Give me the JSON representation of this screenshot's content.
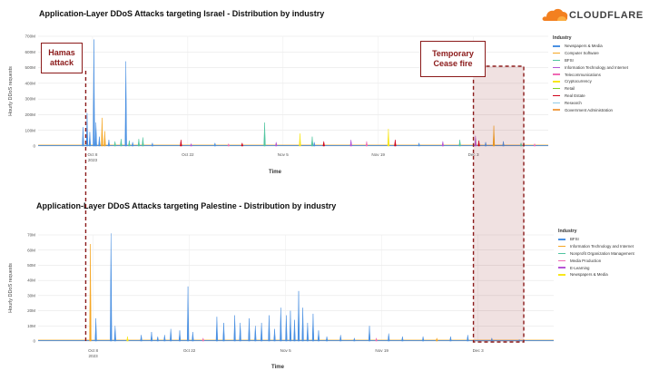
{
  "brand": {
    "name": "CLOUDFLARE",
    "color": "#f38020"
  },
  "annotations": {
    "hamas_label": "Hamas attack",
    "cease_label": "Temporary Cease fire",
    "color": "#8b1a1a"
  },
  "chart_data": [
    {
      "type": "line",
      "title": "Application-Layer DDoS Attacks targeting Israel - Distribution by industry",
      "xlabel": "Time",
      "ylabel": "Hourly DDoS requests",
      "x_ticks": [
        {
          "label": "Oct 8",
          "sub": "2023",
          "day": 8
        },
        {
          "label": "Oct 22",
          "sub": "",
          "day": 22
        },
        {
          "label": "Nov 5",
          "sub": "",
          "day": 36
        },
        {
          "label": "Nov 19",
          "sub": "",
          "day": 50
        },
        {
          "label": "Dec 3",
          "sub": "",
          "day": 64
        }
      ],
      "y_ticks": [
        "0",
        "100M",
        "200M",
        "300M",
        "400M",
        "500M",
        "600M",
        "700M"
      ],
      "ylim": [
        0,
        700
      ],
      "y_unit": "M",
      "legend_title": "Industry",
      "legend_position": "right",
      "series": [
        {
          "name": "Newspapers & Media",
          "color": "#4a90e2"
        },
        {
          "name": "Computer Software",
          "color": "#f5a623"
        },
        {
          "name": "BFSI",
          "color": "#50c5a0"
        },
        {
          "name": "Information Technology and Internet",
          "color": "#b455d6"
        },
        {
          "name": "Telecommunications",
          "color": "#f06ab4"
        },
        {
          "name": "Cryptocurrency",
          "color": "#f8e71c"
        },
        {
          "name": "Retail",
          "color": "#7ed321"
        },
        {
          "name": "Real Estate",
          "color": "#d0021b"
        },
        {
          "name": "Research",
          "color": "#8ecae6"
        },
        {
          "name": "Government Administration",
          "color": "#f0a04b"
        }
      ],
      "spikes": [
        {
          "day": 6.6,
          "value": 120,
          "series": 0
        },
        {
          "day": 7.2,
          "value": 210,
          "series": 0
        },
        {
          "day": 7.6,
          "value": 90,
          "series": 0
        },
        {
          "day": 8.2,
          "value": 680,
          "series": 0
        },
        {
          "day": 8.5,
          "value": 150,
          "series": 0
        },
        {
          "day": 9.0,
          "value": 60,
          "series": 0
        },
        {
          "day": 9.4,
          "value": 180,
          "series": 1
        },
        {
          "day": 9.8,
          "value": 95,
          "series": 1
        },
        {
          "day": 10.4,
          "value": 40,
          "series": 0
        },
        {
          "day": 11.3,
          "value": 30,
          "series": 2
        },
        {
          "day": 12.2,
          "value": 45,
          "series": 2
        },
        {
          "day": 12.9,
          "value": 540,
          "series": 0
        },
        {
          "day": 13.4,
          "value": 35,
          "series": 2
        },
        {
          "day": 13.9,
          "value": 25,
          "series": 0
        },
        {
          "day": 14.8,
          "value": 45,
          "series": 2
        },
        {
          "day": 15.4,
          "value": 55,
          "series": 2
        },
        {
          "day": 16.8,
          "value": 20,
          "series": 0
        },
        {
          "day": 21.0,
          "value": 40,
          "series": 7
        },
        {
          "day": 22.5,
          "value": 15,
          "series": 3
        },
        {
          "day": 26.0,
          "value": 20,
          "series": 0
        },
        {
          "day": 28.0,
          "value": 15,
          "series": 4
        },
        {
          "day": 30.0,
          "value": 20,
          "series": 7
        },
        {
          "day": 33.3,
          "value": 150,
          "series": 2
        },
        {
          "day": 35.0,
          "value": 25,
          "series": 3
        },
        {
          "day": 38.5,
          "value": 80,
          "series": 5
        },
        {
          "day": 40.3,
          "value": 60,
          "series": 2
        },
        {
          "day": 40.6,
          "value": 25,
          "series": 0
        },
        {
          "day": 42.0,
          "value": 30,
          "series": 7
        },
        {
          "day": 46.0,
          "value": 40,
          "series": 3
        },
        {
          "day": 48.3,
          "value": 30,
          "series": 4
        },
        {
          "day": 51.5,
          "value": 110,
          "series": 5
        },
        {
          "day": 52.5,
          "value": 40,
          "series": 7
        },
        {
          "day": 56.0,
          "value": 20,
          "series": 0
        },
        {
          "day": 59.5,
          "value": 30,
          "series": 3
        },
        {
          "day": 62.0,
          "value": 40,
          "series": 2
        },
        {
          "day": 64.3,
          "value": 65,
          "series": 3
        },
        {
          "day": 64.8,
          "value": 35,
          "series": 7
        },
        {
          "day": 65.8,
          "value": 25,
          "series": 0
        },
        {
          "day": 67.0,
          "value": 130,
          "series": 1
        },
        {
          "day": 68.4,
          "value": 30,
          "series": 0
        },
        {
          "day": 71.0,
          "value": 20,
          "series": 2
        },
        {
          "day": 73.0,
          "value": 15,
          "series": 4
        }
      ],
      "x_range": [
        0,
        75
      ]
    },
    {
      "type": "line",
      "title": "Application-Layer DDoS Attacks targeting Palestine - Distribution by industry",
      "xlabel": "Time",
      "ylabel": "Hourly DDoS requests",
      "x_ticks": [
        {
          "label": "Oct 8",
          "sub": "2023",
          "day": 8
        },
        {
          "label": "Oct 22",
          "sub": "",
          "day": 22
        },
        {
          "label": "Nov 5",
          "sub": "",
          "day": 36
        },
        {
          "label": "Nov 19",
          "sub": "",
          "day": 50
        },
        {
          "label": "Dec 3",
          "sub": "",
          "day": 64
        }
      ],
      "y_ticks": [
        "0",
        "10M",
        "20M",
        "30M",
        "40M",
        "50M",
        "60M",
        "70M"
      ],
      "ylim": [
        0,
        70
      ],
      "y_unit": "M",
      "legend_title": "Industry",
      "legend_position": "right",
      "series": [
        {
          "name": "BFSI",
          "color": "#4a90e2"
        },
        {
          "name": "Information Technology and Internet",
          "color": "#f5a623"
        },
        {
          "name": "Nonprofit Organization Management",
          "color": "#50c5a0"
        },
        {
          "name": "Media Production",
          "color": "#f06ab4"
        },
        {
          "name": "E-Learning",
          "color": "#b455d6"
        },
        {
          "name": "Newspapers & Media",
          "color": "#f8e71c"
        }
      ],
      "spikes": [
        {
          "day": 7.6,
          "value": 64,
          "series": 1
        },
        {
          "day": 8.4,
          "value": 15,
          "series": 0
        },
        {
          "day": 10.6,
          "value": 71,
          "series": 0
        },
        {
          "day": 11.2,
          "value": 10,
          "series": 0
        },
        {
          "day": 13.0,
          "value": 3,
          "series": 5
        },
        {
          "day": 15.0,
          "value": 4,
          "series": 0
        },
        {
          "day": 16.5,
          "value": 6,
          "series": 0
        },
        {
          "day": 17.4,
          "value": 3,
          "series": 0
        },
        {
          "day": 18.4,
          "value": 4,
          "series": 0
        },
        {
          "day": 19.3,
          "value": 8,
          "series": 0
        },
        {
          "day": 20.6,
          "value": 7,
          "series": 0
        },
        {
          "day": 21.8,
          "value": 36,
          "series": 0
        },
        {
          "day": 22.5,
          "value": 6,
          "series": 0
        },
        {
          "day": 24.0,
          "value": 2,
          "series": 3
        },
        {
          "day": 26.0,
          "value": 16,
          "series": 0
        },
        {
          "day": 27.0,
          "value": 12,
          "series": 0
        },
        {
          "day": 28.6,
          "value": 17,
          "series": 0
        },
        {
          "day": 29.4,
          "value": 12,
          "series": 0
        },
        {
          "day": 30.7,
          "value": 15,
          "series": 0
        },
        {
          "day": 31.6,
          "value": 10,
          "series": 0
        },
        {
          "day": 32.5,
          "value": 12,
          "series": 0
        },
        {
          "day": 33.6,
          "value": 17,
          "series": 0
        },
        {
          "day": 34.4,
          "value": 8,
          "series": 0
        },
        {
          "day": 35.3,
          "value": 22,
          "series": 0
        },
        {
          "day": 36.1,
          "value": 17,
          "series": 0
        },
        {
          "day": 36.7,
          "value": 20,
          "series": 0
        },
        {
          "day": 37.3,
          "value": 14,
          "series": 0
        },
        {
          "day": 37.9,
          "value": 33,
          "series": 0
        },
        {
          "day": 38.5,
          "value": 22,
          "series": 0
        },
        {
          "day": 39.2,
          "value": 12,
          "series": 0
        },
        {
          "day": 40.0,
          "value": 18,
          "series": 0
        },
        {
          "day": 40.8,
          "value": 7,
          "series": 0
        },
        {
          "day": 42.0,
          "value": 3,
          "series": 0
        },
        {
          "day": 44.0,
          "value": 4,
          "series": 0
        },
        {
          "day": 46.0,
          "value": 2,
          "series": 0
        },
        {
          "day": 48.2,
          "value": 10,
          "series": 0
        },
        {
          "day": 49.2,
          "value": 2,
          "series": 3
        },
        {
          "day": 51.0,
          "value": 5,
          "series": 0
        },
        {
          "day": 53.0,
          "value": 3,
          "series": 0
        },
        {
          "day": 56.0,
          "value": 3,
          "series": 0
        },
        {
          "day": 58.0,
          "value": 2,
          "series": 1
        },
        {
          "day": 60.0,
          "value": 3,
          "series": 0
        },
        {
          "day": 62.5,
          "value": 4,
          "series": 0
        },
        {
          "day": 66.0,
          "value": 2,
          "series": 0
        },
        {
          "day": 70.0,
          "value": 1,
          "series": 0
        }
      ],
      "x_range": [
        0,
        75
      ]
    }
  ]
}
